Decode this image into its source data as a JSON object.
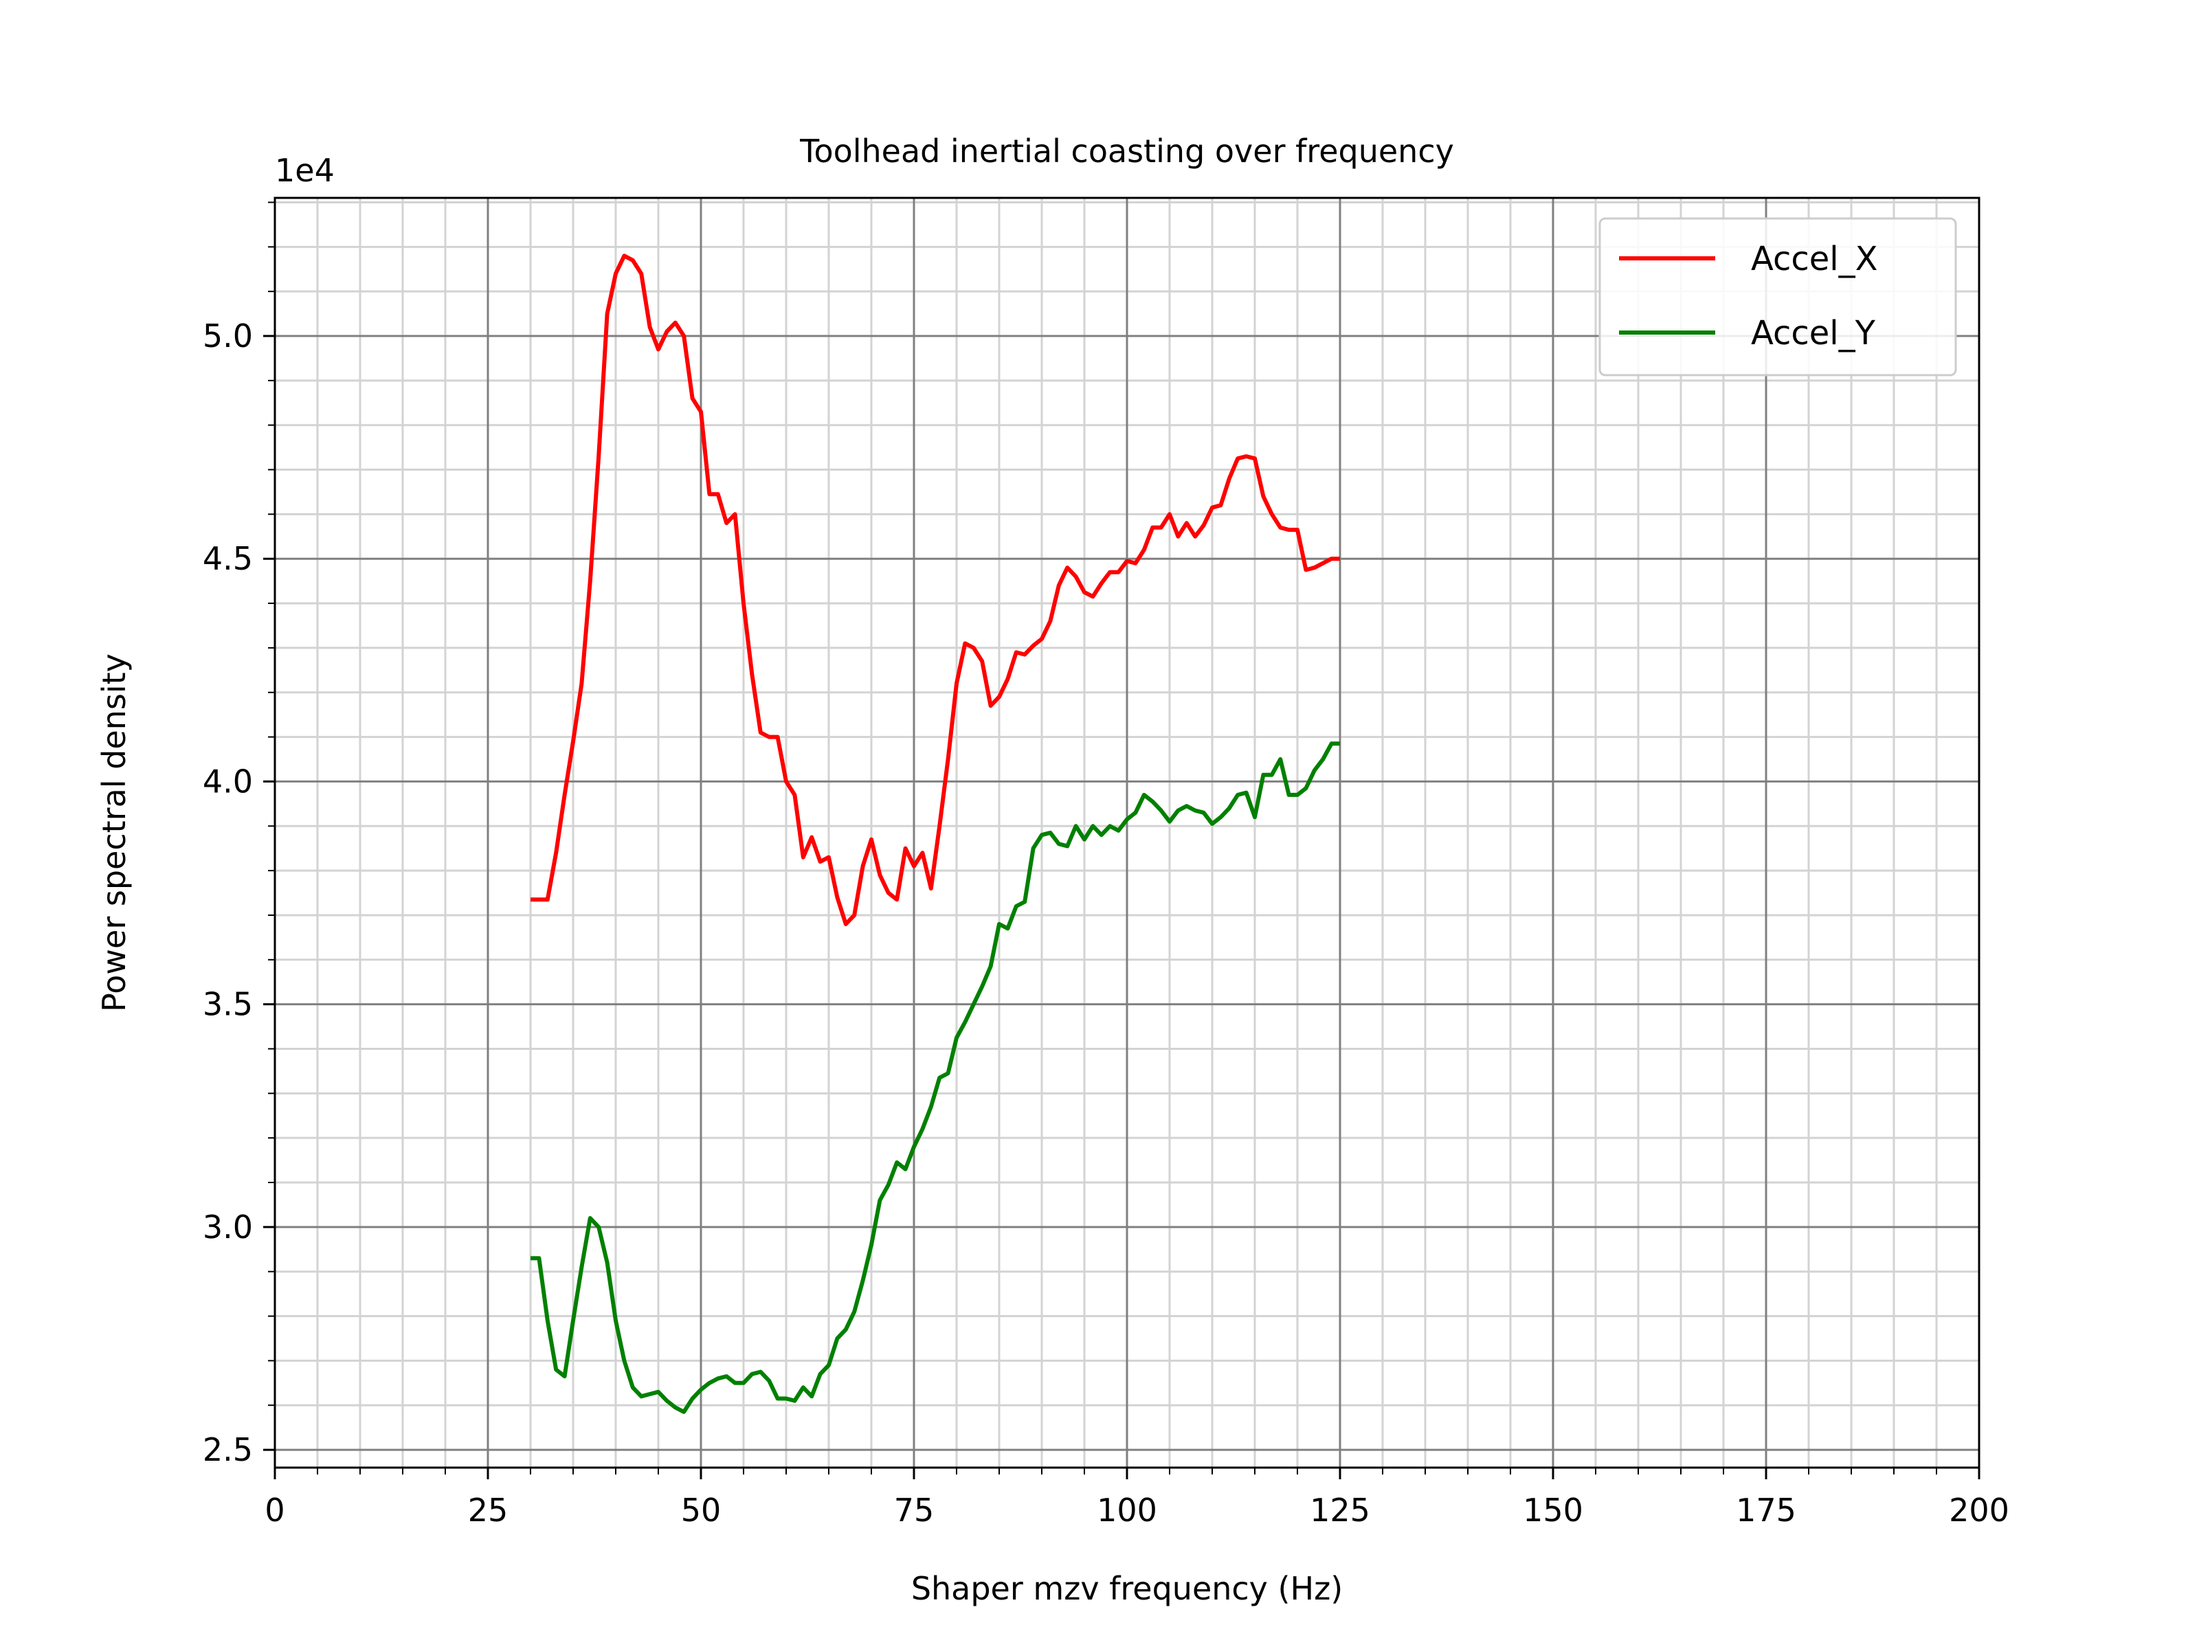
{
  "chart_data": {
    "type": "line",
    "title": "Toolhead inertial coasting over frequency",
    "xlabel": "Shaper mzv frequency (Hz)",
    "ylabel": "Power spectral density",
    "y_offset_label": "1e4",
    "xlim": [
      0,
      200
    ],
    "ylim": [
      24600,
      53100
    ],
    "x_ticks": [
      0,
      25,
      50,
      75,
      100,
      125,
      150,
      175,
      200
    ],
    "x_tick_labels": [
      "0",
      "25",
      "50",
      "75",
      "100",
      "125",
      "150",
      "175",
      "200"
    ],
    "y_ticks": [
      25000,
      30000,
      35000,
      40000,
      45000,
      50000
    ],
    "y_tick_labels": [
      "2.5",
      "3.0",
      "3.5",
      "4.0",
      "4.5",
      "5.0"
    ],
    "grid": true,
    "legend_position": "top-right",
    "series": [
      {
        "name": "Accel_X",
        "color": "#ff0000",
        "points": [
          [
            30,
            37350
          ],
          [
            31,
            37350
          ],
          [
            32,
            37350
          ],
          [
            33,
            38400
          ],
          [
            34,
            39700
          ],
          [
            35,
            40900
          ],
          [
            36,
            42200
          ],
          [
            37,
            44500
          ],
          [
            38,
            47300
          ],
          [
            39,
            50500
          ],
          [
            40,
            51400
          ],
          [
            41,
            51800
          ],
          [
            42,
            51700
          ],
          [
            43,
            51400
          ],
          [
            44,
            50200
          ],
          [
            45,
            49700
          ],
          [
            46,
            50100
          ],
          [
            47,
            50300
          ],
          [
            48,
            50000
          ],
          [
            49,
            48600
          ],
          [
            50,
            48300
          ],
          [
            51,
            46450
          ],
          [
            52,
            46450
          ],
          [
            53,
            45800
          ],
          [
            54,
            46000
          ],
          [
            55,
            44000
          ],
          [
            56,
            42400
          ],
          [
            57,
            41100
          ],
          [
            58,
            41000
          ],
          [
            59,
            41000
          ],
          [
            60,
            40000
          ],
          [
            61,
            39700
          ],
          [
            62,
            38300
          ],
          [
            63,
            38750
          ],
          [
            64,
            38200
          ],
          [
            65,
            38300
          ],
          [
            66,
            37400
          ],
          [
            67,
            36800
          ],
          [
            68,
            37000
          ],
          [
            69,
            38100
          ],
          [
            70,
            38700
          ],
          [
            71,
            37900
          ],
          [
            72,
            37500
          ],
          [
            73,
            37350
          ],
          [
            74,
            38500
          ],
          [
            75,
            38100
          ],
          [
            76,
            38400
          ],
          [
            77,
            37600
          ],
          [
            78,
            39000
          ],
          [
            79,
            40500
          ],
          [
            80,
            42200
          ],
          [
            81,
            43100
          ],
          [
            82,
            43000
          ],
          [
            83,
            42700
          ],
          [
            84,
            41700
          ],
          [
            85,
            41900
          ],
          [
            86,
            42300
          ],
          [
            87,
            42900
          ],
          [
            88,
            42850
          ],
          [
            89,
            43050
          ],
          [
            90,
            43200
          ],
          [
            91,
            43600
          ],
          [
            92,
            44400
          ],
          [
            93,
            44800
          ],
          [
            94,
            44600
          ],
          [
            95,
            44250
          ],
          [
            96,
            44150
          ],
          [
            97,
            44450
          ],
          [
            98,
            44700
          ],
          [
            99,
            44700
          ],
          [
            100,
            44950
          ],
          [
            101,
            44900
          ],
          [
            102,
            45200
          ],
          [
            103,
            45700
          ],
          [
            104,
            45700
          ],
          [
            105,
            46000
          ],
          [
            106,
            45500
          ],
          [
            107,
            45800
          ],
          [
            108,
            45500
          ],
          [
            109,
            45750
          ],
          [
            110,
            46150
          ],
          [
            111,
            46200
          ],
          [
            112,
            46800
          ],
          [
            113,
            47250
          ],
          [
            114,
            47300
          ],
          [
            115,
            47250
          ],
          [
            116,
            46400
          ],
          [
            117,
            46000
          ],
          [
            118,
            45700
          ],
          [
            119,
            45650
          ],
          [
            120,
            45650
          ],
          [
            121,
            44750
          ],
          [
            122,
            44800
          ],
          [
            123,
            44900
          ],
          [
            124,
            45000
          ],
          [
            125,
            45000
          ]
        ]
      },
      {
        "name": "Accel_Y",
        "color": "#008000",
        "points": [
          [
            30,
            29300
          ],
          [
            31,
            29300
          ],
          [
            32,
            27900
          ],
          [
            33,
            26800
          ],
          [
            34,
            26650
          ],
          [
            35,
            27900
          ],
          [
            36,
            29100
          ],
          [
            37,
            30200
          ],
          [
            38,
            30000
          ],
          [
            39,
            29200
          ],
          [
            40,
            27900
          ],
          [
            41,
            27000
          ],
          [
            42,
            26400
          ],
          [
            43,
            26200
          ],
          [
            44,
            26250
          ],
          [
            45,
            26300
          ],
          [
            46,
            26100
          ],
          [
            47,
            25950
          ],
          [
            48,
            25850
          ],
          [
            49,
            26150
          ],
          [
            50,
            26350
          ],
          [
            51,
            26500
          ],
          [
            52,
            26600
          ],
          [
            53,
            26650
          ],
          [
            54,
            26500
          ],
          [
            55,
            26500
          ],
          [
            56,
            26700
          ],
          [
            57,
            26750
          ],
          [
            58,
            26550
          ],
          [
            59,
            26150
          ],
          [
            60,
            26150
          ],
          [
            61,
            26100
          ],
          [
            62,
            26400
          ],
          [
            63,
            26200
          ],
          [
            64,
            26700
          ],
          [
            65,
            26900
          ],
          [
            66,
            27500
          ],
          [
            67,
            27700
          ],
          [
            68,
            28100
          ],
          [
            69,
            28800
          ],
          [
            70,
            29600
          ],
          [
            71,
            30600
          ],
          [
            72,
            30950
          ],
          [
            73,
            31450
          ],
          [
            74,
            31300
          ],
          [
            75,
            31800
          ],
          [
            76,
            32200
          ],
          [
            77,
            32700
          ],
          [
            78,
            33350
          ],
          [
            79,
            33450
          ],
          [
            80,
            34250
          ],
          [
            81,
            34600
          ],
          [
            82,
            35000
          ],
          [
            83,
            35400
          ],
          [
            84,
            35850
          ],
          [
            85,
            36800
          ],
          [
            86,
            36700
          ],
          [
            87,
            37200
          ],
          [
            88,
            37300
          ],
          [
            89,
            38500
          ],
          [
            90,
            38800
          ],
          [
            91,
            38850
          ],
          [
            92,
            38600
          ],
          [
            93,
            38550
          ],
          [
            94,
            39000
          ],
          [
            95,
            38700
          ],
          [
            96,
            39000
          ],
          [
            97,
            38800
          ],
          [
            98,
            39000
          ],
          [
            99,
            38900
          ],
          [
            100,
            39150
          ],
          [
            101,
            39300
          ],
          [
            102,
            39700
          ],
          [
            103,
            39550
          ],
          [
            104,
            39350
          ],
          [
            105,
            39100
          ],
          [
            106,
            39350
          ],
          [
            107,
            39450
          ],
          [
            108,
            39350
          ],
          [
            109,
            39300
          ],
          [
            110,
            39050
          ],
          [
            111,
            39200
          ],
          [
            112,
            39400
          ],
          [
            113,
            39700
          ],
          [
            114,
            39750
          ],
          [
            115,
            39200
          ],
          [
            116,
            40150
          ],
          [
            117,
            40150
          ],
          [
            118,
            40500
          ],
          [
            119,
            39700
          ],
          [
            120,
            39700
          ],
          [
            121,
            39850
          ],
          [
            122,
            40250
          ],
          [
            123,
            40500
          ],
          [
            124,
            40850
          ],
          [
            125,
            40850
          ]
        ]
      }
    ]
  }
}
